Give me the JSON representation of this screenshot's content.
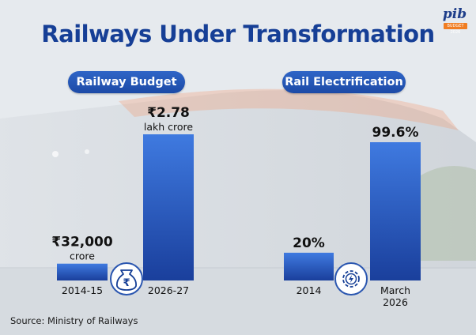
{
  "title": "Railways Under Transformation",
  "logo": {
    "text": "pib",
    "tag": "BUDGET 2026"
  },
  "source": "Source: Ministry of Railways",
  "colors": {
    "title": "#163f96",
    "bar_top": "#3f7ae0",
    "bar_bottom": "#1a3f9c",
    "pill": "#1c4aa6",
    "icon_ring": "#2a56b0"
  },
  "icons": {
    "budget": "rupee-bag-icon",
    "electrification": "electric-gear-icon"
  },
  "chart_data": [
    {
      "type": "bar",
      "title": "Railway Budget",
      "categories": [
        "2014-15",
        "2026-27"
      ],
      "values": [
        32000,
        278000
      ],
      "value_labels": [
        {
          "value": "₹32,000",
          "unit": "crore"
        },
        {
          "value": "₹2.78",
          "unit": "lakh crore"
        }
      ],
      "ylim": [
        0,
        290000
      ]
    },
    {
      "type": "bar",
      "title": "Rail Electrification",
      "categories": [
        "2014",
        "March 2026"
      ],
      "category_lines": [
        [
          "2014"
        ],
        [
          "March",
          "2026"
        ]
      ],
      "values": [
        20,
        99.6
      ],
      "value_labels": [
        {
          "value": "20%",
          "unit": ""
        },
        {
          "value": "99.6%",
          "unit": ""
        }
      ],
      "ylim": [
        0,
        100
      ]
    }
  ]
}
